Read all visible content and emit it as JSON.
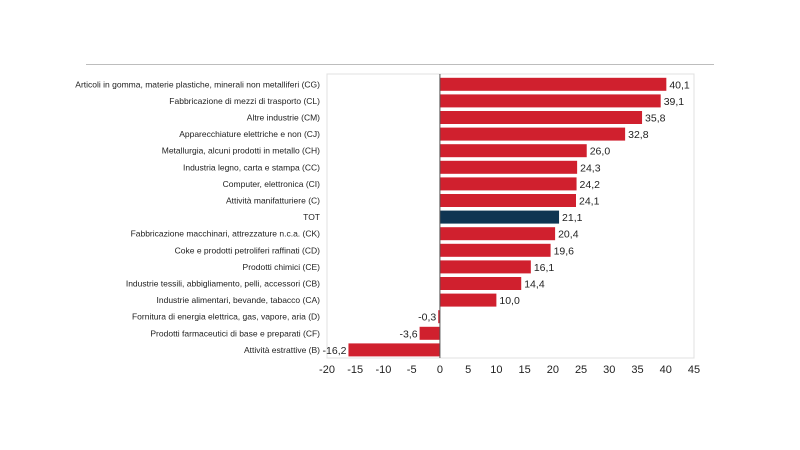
{
  "chart_data": {
    "type": "bar",
    "orientation": "horizontal",
    "categories": [
      "Articoli in gomma, materie plastiche, minerali non metalliferi (CG)",
      "Fabbricazione di mezzi di trasporto (CL)",
      "Altre industrie (CM)",
      "Apparecchiature elettriche e non (CJ)",
      "Metallurgia, alcuni prodotti in metallo (CH)",
      "Industria legno, carta e stampa (CC)",
      "Computer, elettronica (CI)",
      "Attività manifatturiere (C)",
      "TOT",
      "Fabbricazione macchinari, attrezzature n.c.a. (CK)",
      "Coke e prodotti petroliferi raffinati (CD)",
      "Prodotti chimici (CE)",
      "Industrie tessili, abbigliamento, pelli, accessori (CB)",
      "Industrie alimentari, bevande, tabacco (CA)",
      "Fornitura di energia elettrica, gas, vapore, aria (D)",
      "Prodotti farmaceutici di base e preparati (CF)",
      "Attività estrattive (B)"
    ],
    "values": [
      40.1,
      39.1,
      35.8,
      32.8,
      26.0,
      24.3,
      24.2,
      24.1,
      21.1,
      20.4,
      19.6,
      16.1,
      14.4,
      10.0,
      -0.3,
      -3.6,
      -16.2
    ],
    "value_labels": [
      "40,1",
      "39,1",
      "35,8",
      "32,8",
      "26,0",
      "24,3",
      "24,2",
      "24,1",
      "21,1",
      "20,4",
      "19,6",
      "16,1",
      "14,4",
      "10,0",
      "-0,3",
      "-3,6",
      "-16,2"
    ],
    "highlight_category": "TOT",
    "xlim": [
      -20,
      45
    ],
    "xticks": [
      -20,
      -15,
      -10,
      -5,
      0,
      5,
      10,
      15,
      20,
      25,
      30,
      35,
      40,
      45
    ],
    "xtick_labels": [
      "-20",
      "-15",
      "-10",
      "-5",
      "0",
      "5",
      "10",
      "15",
      "20",
      "25",
      "30",
      "35",
      "40",
      "45"
    ],
    "grid": false,
    "title": "",
    "xlabel": "",
    "ylabel": "",
    "colors": {
      "bar": "#d0202e",
      "highlight": "#0f3552",
      "zero_line": "#555555",
      "text": "#222222"
    }
  }
}
